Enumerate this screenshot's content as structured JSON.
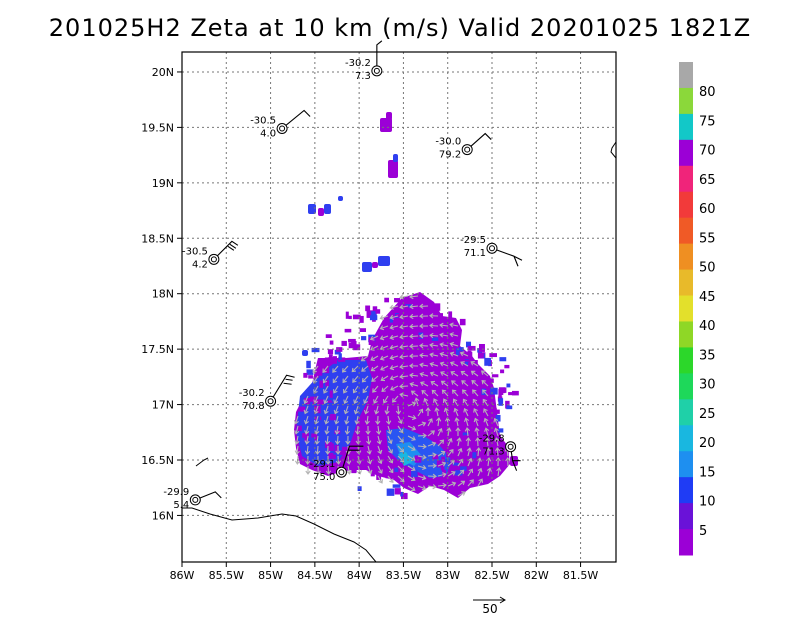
{
  "chart_data": {
    "type": "heatmap",
    "title": "201025H2 Zeta at 10 km (m/s) Valid 20201025 1821Z",
    "x_ticks": [
      "86W",
      "85.5W",
      "85W",
      "84.5W",
      "84W",
      "83.5W",
      "83W",
      "82.5W",
      "82W",
      "81.5W"
    ],
    "y_ticks": [
      "16N",
      "16.5N",
      "17N",
      "17.5N",
      "18N",
      "18.5N",
      "19N",
      "19.5N",
      "20N"
    ],
    "xlim": [
      -86.0,
      -81.1
    ],
    "ylim": [
      15.58,
      20.18
    ],
    "colorbar": {
      "labels": [
        "5",
        "10",
        "15",
        "20",
        "25",
        "30",
        "35",
        "40",
        "45",
        "50",
        "55",
        "60",
        "65",
        "70",
        "75",
        "80"
      ],
      "colors": [
        "#9b00d6",
        "#6a12d8",
        "#1f3cf5",
        "#1e8ff0",
        "#19b7e0",
        "#1fd0a8",
        "#1ed85a",
        "#2cd72a",
        "#8fd726",
        "#e3e02b",
        "#e8ba2a",
        "#ef8f22",
        "#f05a26",
        "#f23a3a",
        "#f0247a",
        "#9b00d6",
        "#12c8c8",
        "#8bd83a",
        "#a8a8a8"
      ]
    },
    "observations": [
      {
        "lon": -83.8,
        "lat": 20.01,
        "temp": "-30.2",
        "speed": "7.3"
      },
      {
        "lon": -84.87,
        "lat": 19.49,
        "temp": "-30.5",
        "speed": "4.0"
      },
      {
        "lon": -82.78,
        "lat": 19.3,
        "temp": "-30.0",
        "speed": "79.2"
      },
      {
        "lon": -82.5,
        "lat": 18.41,
        "temp": "-29.5",
        "speed": "71.1"
      },
      {
        "lon": -85.64,
        "lat": 18.31,
        "temp": "-30.5",
        "speed": "4.2"
      },
      {
        "lon": -85.0,
        "lat": 17.03,
        "temp": "-30.2",
        "speed": "70.8"
      },
      {
        "lon": -84.2,
        "lat": 16.39,
        "temp": "-29.1",
        "speed": "75.0"
      },
      {
        "lon": -82.29,
        "lat": 16.62,
        "temp": "-29.8",
        "speed": "71.3"
      },
      {
        "lon": -85.85,
        "lat": 16.14,
        "temp": "-29.9",
        "speed": "5.4"
      }
    ],
    "reference_vector_label": "50"
  }
}
